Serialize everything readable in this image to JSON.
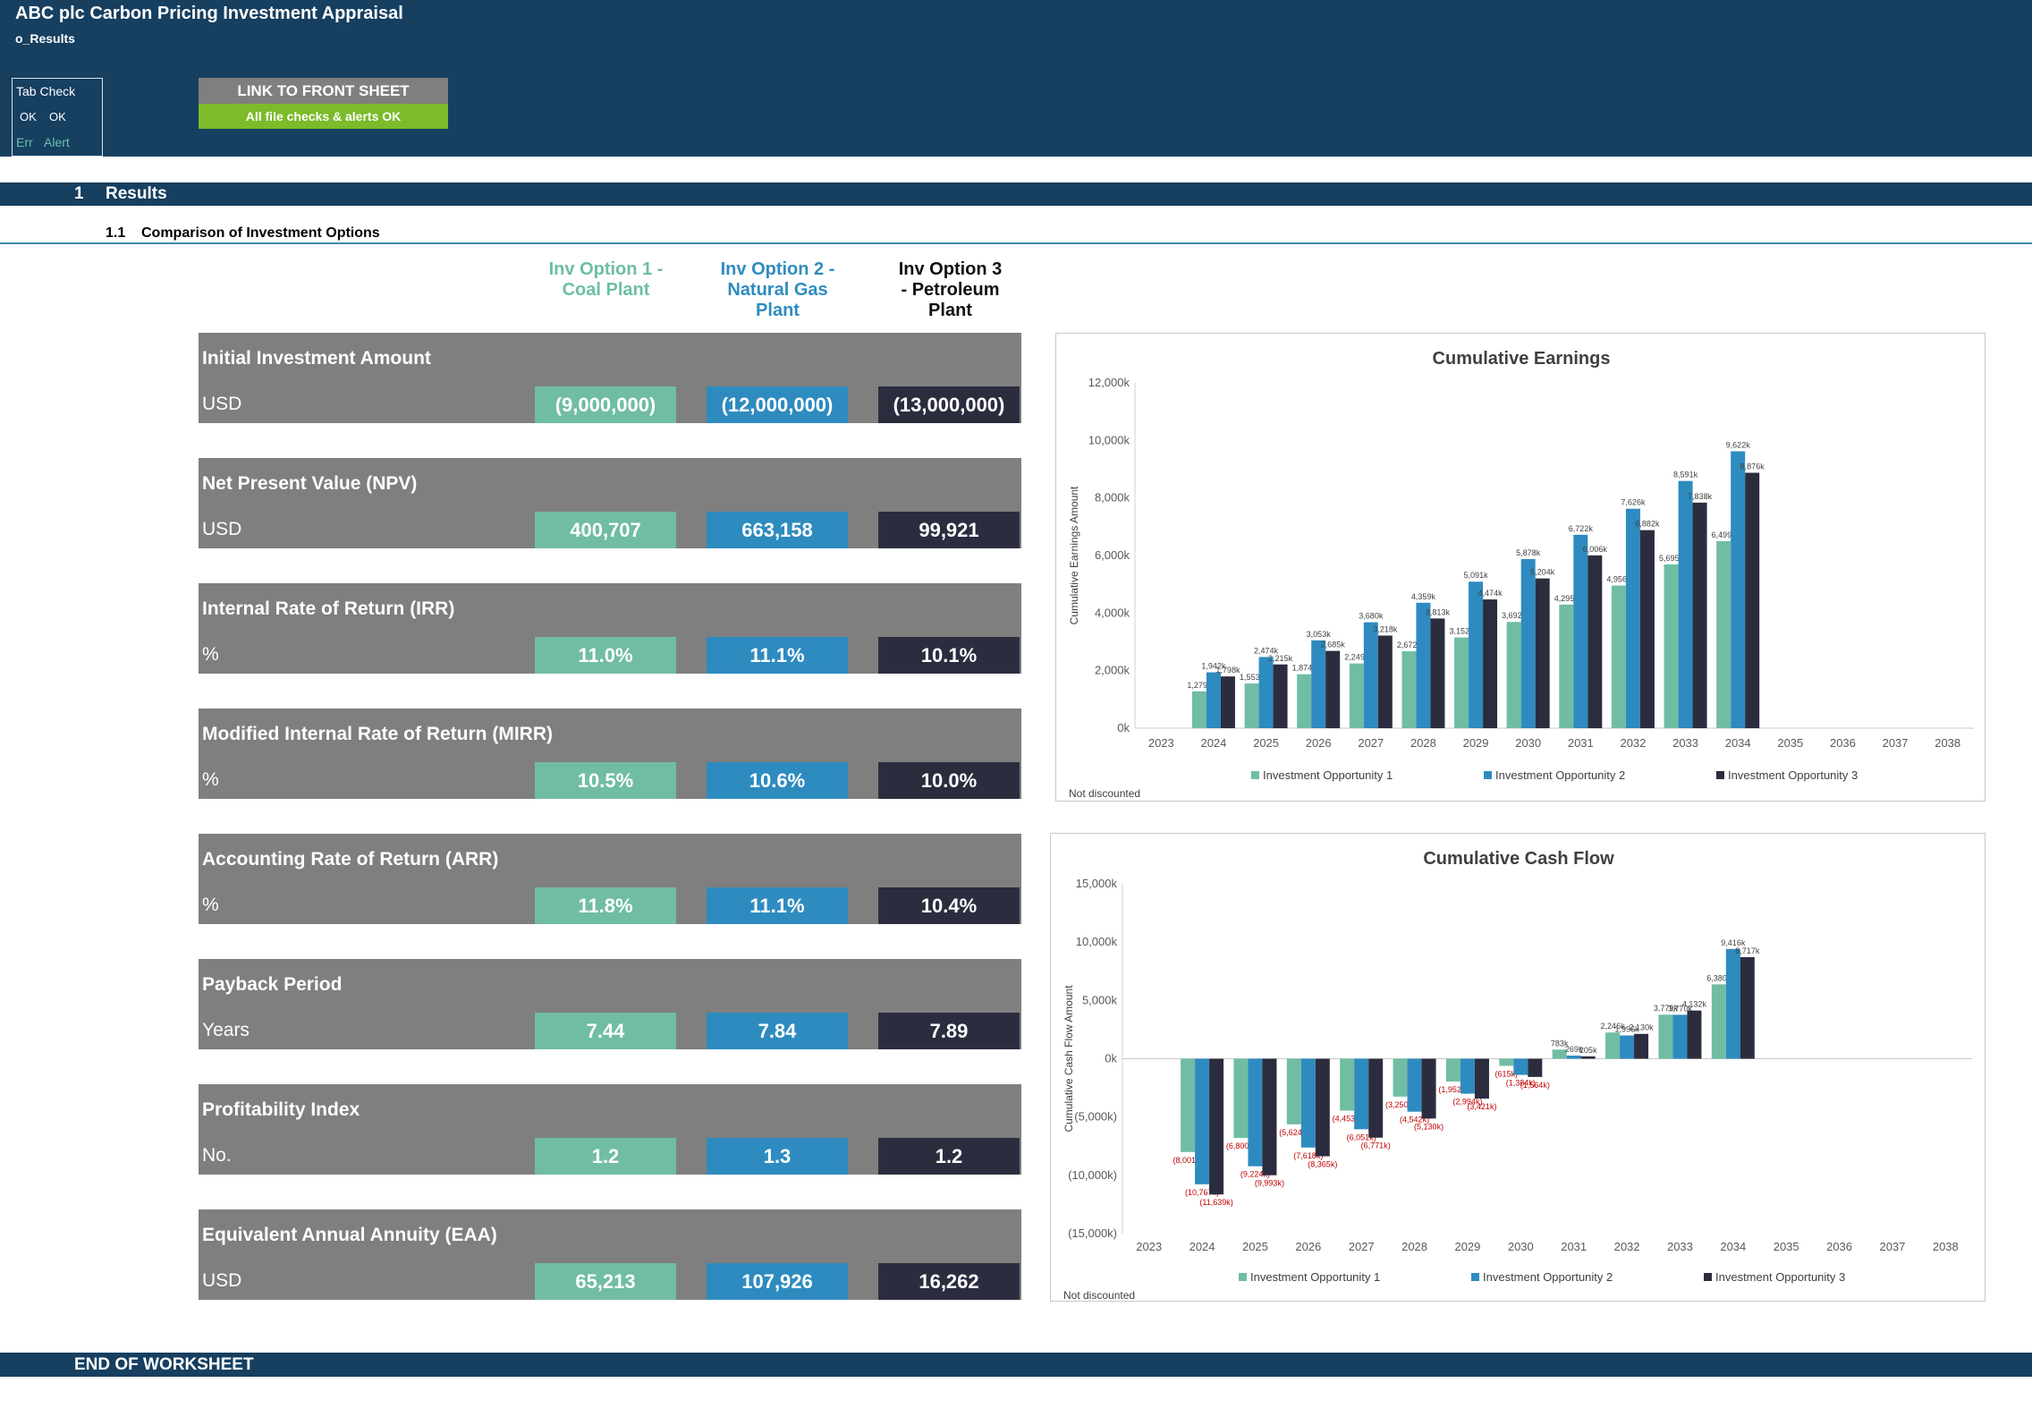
{
  "header": {
    "title": "ABC plc Carbon Pricing Investment Appraisal",
    "sheet": "o_Results",
    "tab_check": {
      "title": "Tab Check",
      "ok1": "OK",
      "ok2": "OK",
      "err": "Err",
      "alert": "Alert"
    },
    "link_button": "LINK TO FRONT SHEET",
    "checks_status": "All file checks & alerts OK"
  },
  "section": {
    "number": "1",
    "label": "Results"
  },
  "subsection": {
    "number": "1.1",
    "label": "Comparison of Investment Options"
  },
  "options": [
    {
      "lines": [
        "Inv Option 1 -",
        "Coal Plant"
      ]
    },
    {
      "lines": [
        "Inv Option 2 -",
        "Natural Gas",
        "Plant"
      ]
    },
    {
      "lines": [
        "Inv Option 3",
        "- Petroleum",
        "Plant"
      ]
    }
  ],
  "metrics": [
    {
      "title": "Initial Investment Amount",
      "unit": "USD",
      "values": [
        "(9,000,000)",
        "(12,000,000)",
        "(13,000,000)"
      ]
    },
    {
      "title": "Net Present Value (NPV)",
      "unit": "USD",
      "values": [
        "400,707",
        "663,158",
        "99,921"
      ]
    },
    {
      "title": "Internal Rate of Return (IRR)",
      "unit": "%",
      "values": [
        "11.0%",
        "11.1%",
        "10.1%"
      ]
    },
    {
      "title": "Modified Internal Rate of Return (MIRR)",
      "unit": "%",
      "values": [
        "10.5%",
        "10.6%",
        "10.0%"
      ]
    },
    {
      "title": "Accounting Rate of Return (ARR)",
      "unit": "%",
      "values": [
        "11.8%",
        "11.1%",
        "10.4%"
      ]
    },
    {
      "title": "Payback Period",
      "unit": "Years",
      "values": [
        "7.44",
        "7.84",
        "7.89"
      ]
    },
    {
      "title": "Profitability Index",
      "unit": "No.",
      "values": [
        "1.2",
        "1.3",
        "1.2"
      ]
    },
    {
      "title": "Equivalent Annual Annuity (EAA)",
      "unit": "USD",
      "values": [
        "65,213",
        "107,926",
        "16,262"
      ]
    }
  ],
  "colors": {
    "header_bg": "#163f60",
    "option1": "#70bda3",
    "option2": "#2e8bbf",
    "option3": "#2b2d3f",
    "metric_bg": "#7f7f7f",
    "ok_green": "#7cbb2a",
    "negative_label": "#c00000"
  },
  "chart_data": [
    {
      "type": "bar",
      "title": "Cumulative Earnings",
      "ylabel": "Cumulative    Earnings Amount",
      "footnote": "Not discounted",
      "categories": [
        "2023",
        "2024",
        "2025",
        "2026",
        "2027",
        "2028",
        "2029",
        "2030",
        "2031",
        "2032",
        "2033",
        "2034",
        "2035",
        "2036",
        "2037",
        "2038"
      ],
      "ylim": [
        0,
        12000
      ],
      "yticks": [
        0,
        2000,
        4000,
        6000,
        8000,
        10000,
        12000
      ],
      "ytick_labels": [
        "0k",
        "2,000k",
        "4,000k",
        "6,000k",
        "8,000k",
        "10,000k",
        "12,000k"
      ],
      "grid": false,
      "legend": "bottom",
      "series": [
        {
          "name": "Investment Opportunity 1",
          "color": "#70bda3",
          "values": [
            null,
            1279,
            1553,
            1874,
            2249,
            2672,
            3152,
            3692,
            4295,
            4956,
            5695,
            6499,
            null,
            null,
            null,
            null
          ],
          "labels": [
            "",
            "1,279k",
            "1,553k",
            "1,874k",
            "2,249k",
            "2,672k",
            "3,152k",
            "3,692k",
            "4,295k",
            "4,956k",
            "5,695k",
            "6,499k",
            "",
            "",
            "",
            ""
          ]
        },
        {
          "name": "Investment Opportunity 2",
          "color": "#2e8bbf",
          "values": [
            null,
            1942,
            2474,
            3053,
            3680,
            4359,
            5091,
            5878,
            6722,
            7626,
            8591,
            9622,
            null,
            null,
            null,
            null
          ],
          "labels": [
            "",
            "1,942k",
            "2,474k",
            "3,053k",
            "3,680k",
            "4,359k",
            "5,091k",
            "5,878k",
            "6,722k",
            "7,626k",
            "8,591k",
            "9,622k",
            "",
            "",
            "",
            ""
          ]
        },
        {
          "name": "Investment Opportunity 3",
          "color": "#2b2d3f",
          "values": [
            null,
            1798,
            2215,
            2685,
            3218,
            3813,
            4474,
            5204,
            6006,
            6882,
            7838,
            8876,
            null,
            null,
            null,
            null
          ],
          "labels": [
            "",
            "1,798k",
            "2,215k",
            "2,685k",
            "3,218k",
            "3,813k",
            "4,474k",
            "5,204k",
            "6,006k",
            "6,882k",
            "7,838k",
            "8,876k",
            "",
            "",
            "",
            ""
          ]
        }
      ]
    },
    {
      "type": "bar",
      "title": "Cumulative Cash Flow",
      "ylabel": "Cumulative  Cash Flow Amount",
      "footnote": "Not discounted",
      "categories": [
        "2023",
        "2024",
        "2025",
        "2026",
        "2027",
        "2028",
        "2029",
        "2030",
        "2031",
        "2032",
        "2033",
        "2034",
        "2035",
        "2036",
        "2037",
        "2038"
      ],
      "ylim": [
        -15000,
        15000
      ],
      "yticks": [
        -15000,
        -10000,
        -5000,
        0,
        5000,
        10000,
        15000
      ],
      "ytick_labels": [
        "(15,000k)",
        "(10,000k)",
        "(5,000k)",
        "0k",
        "5,000k",
        "10,000k",
        "15,000k"
      ],
      "grid": false,
      "legend": "bottom",
      "series": [
        {
          "name": "Investment Opportunity 1",
          "color": "#70bda3",
          "values": [
            null,
            -8001,
            -6800,
            -5624,
            -4453,
            -3250,
            -1952,
            -615,
            783,
            2246,
            3779,
            6380,
            null,
            null,
            null,
            null
          ],
          "labels": [
            "",
            "(8,001k)",
            "(6,800k)",
            "(5,624k)",
            "(4,453k)",
            "(3,250k)",
            "(1,952k)",
            "(615k)",
            "783k",
            "2,246k",
            "3,779k",
            "6,380k",
            "",
            "",
            "",
            ""
          ]
        },
        {
          "name": "Investment Opportunity 2",
          "color": "#2e8bbf",
          "values": [
            null,
            -10767,
            -9224,
            -7618,
            -6051,
            -4542,
            -2994,
            -1384,
            269,
            1996,
            3770,
            9416,
            null,
            null,
            null,
            null
          ],
          "labels": [
            "",
            "(10,767k)",
            "(9,224k)",
            "(7,618k)",
            "(6,051k)",
            "(4,542k)",
            "(2,994k)",
            "(1,384k)",
            "269k",
            "1,996k",
            "3,770k",
            "9,416k",
            "",
            "",
            "",
            ""
          ]
        },
        {
          "name": "Investment Opportunity 3",
          "color": "#2b2d3f",
          "values": [
            null,
            -11639,
            -9993,
            -8365,
            -6771,
            -5130,
            -3421,
            -1564,
            205,
            2130,
            4132,
            8717,
            null,
            null,
            null,
            null
          ],
          "labels": [
            "",
            "(11,639k)",
            "(9,993k)",
            "(8,365k)",
            "(6,771k)",
            "(5,130k)",
            "(3,421k)",
            "(1,564k)",
            "205k",
            "2,130k",
            "4,132k",
            "8,717k",
            "",
            "",
            "",
            ""
          ]
        }
      ]
    }
  ],
  "end_label": "END OF WORKSHEET"
}
